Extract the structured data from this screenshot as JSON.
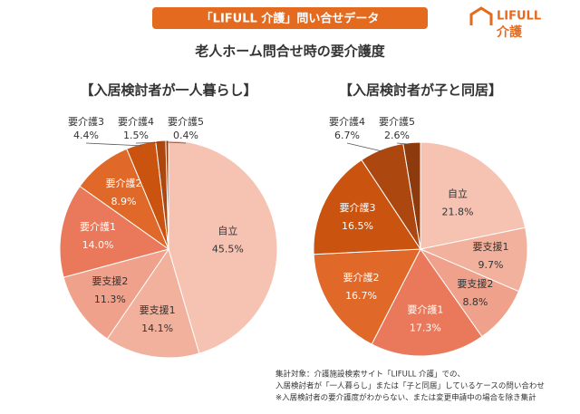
{
  "header": {
    "badge": "「LIFULL 介護」問い合せデータ",
    "title": "老人ホーム問合せ時の要介護度",
    "logo": "LIFULL",
    "logo_sub": "介護"
  },
  "chart_data": [
    {
      "type": "pie",
      "title": "【入居検討者が一人暮らし】",
      "categories": [
        "自立",
        "要支援1",
        "要支援2",
        "要介護1",
        "要介護2",
        "要介護3",
        "要介護4",
        "要介護5"
      ],
      "values": [
        45.5,
        14.1,
        11.3,
        14.0,
        8.9,
        4.4,
        1.5,
        0.4
      ],
      "value_labels": [
        "45.5%",
        "14.1%",
        "11.3%",
        "14.0%",
        "8.9%",
        "4.4%",
        "1.5%",
        "0.4%"
      ],
      "colors": [
        "#f6c3b3",
        "#f2b19d",
        "#efa18b",
        "#e9795a",
        "#e0692a",
        "#c9530f",
        "#ad4710",
        "#8c3a0e"
      ]
    },
    {
      "type": "pie",
      "title": "【入居検討者が子と同居】",
      "categories": [
        "自立",
        "要支援1",
        "要支援2",
        "要介護1",
        "要介護2",
        "要介護3",
        "要介護4",
        "要介護5"
      ],
      "values": [
        21.8,
        9.7,
        8.8,
        17.3,
        16.7,
        16.5,
        6.7,
        2.6
      ],
      "value_labels": [
        "21.8%",
        "9.7%",
        "8.8%",
        "17.3%",
        "16.7%",
        "16.5%",
        "6.7%",
        "2.6%"
      ],
      "colors": [
        "#f6c3b3",
        "#f2b19d",
        "#efa18b",
        "#e9795a",
        "#e0692a",
        "#c9530f",
        "#ad4710",
        "#8c3a0e"
      ]
    }
  ],
  "footnote": [
    "集計対象：介護施設検索サイト「LIFULL 介護」での、",
    "入居検討者が「一人暮らし」または「子と同居」しているケースの問い合わせ",
    "※入居検討者の要介護度がわからない、または変更申請中の場合を除き集計"
  ]
}
